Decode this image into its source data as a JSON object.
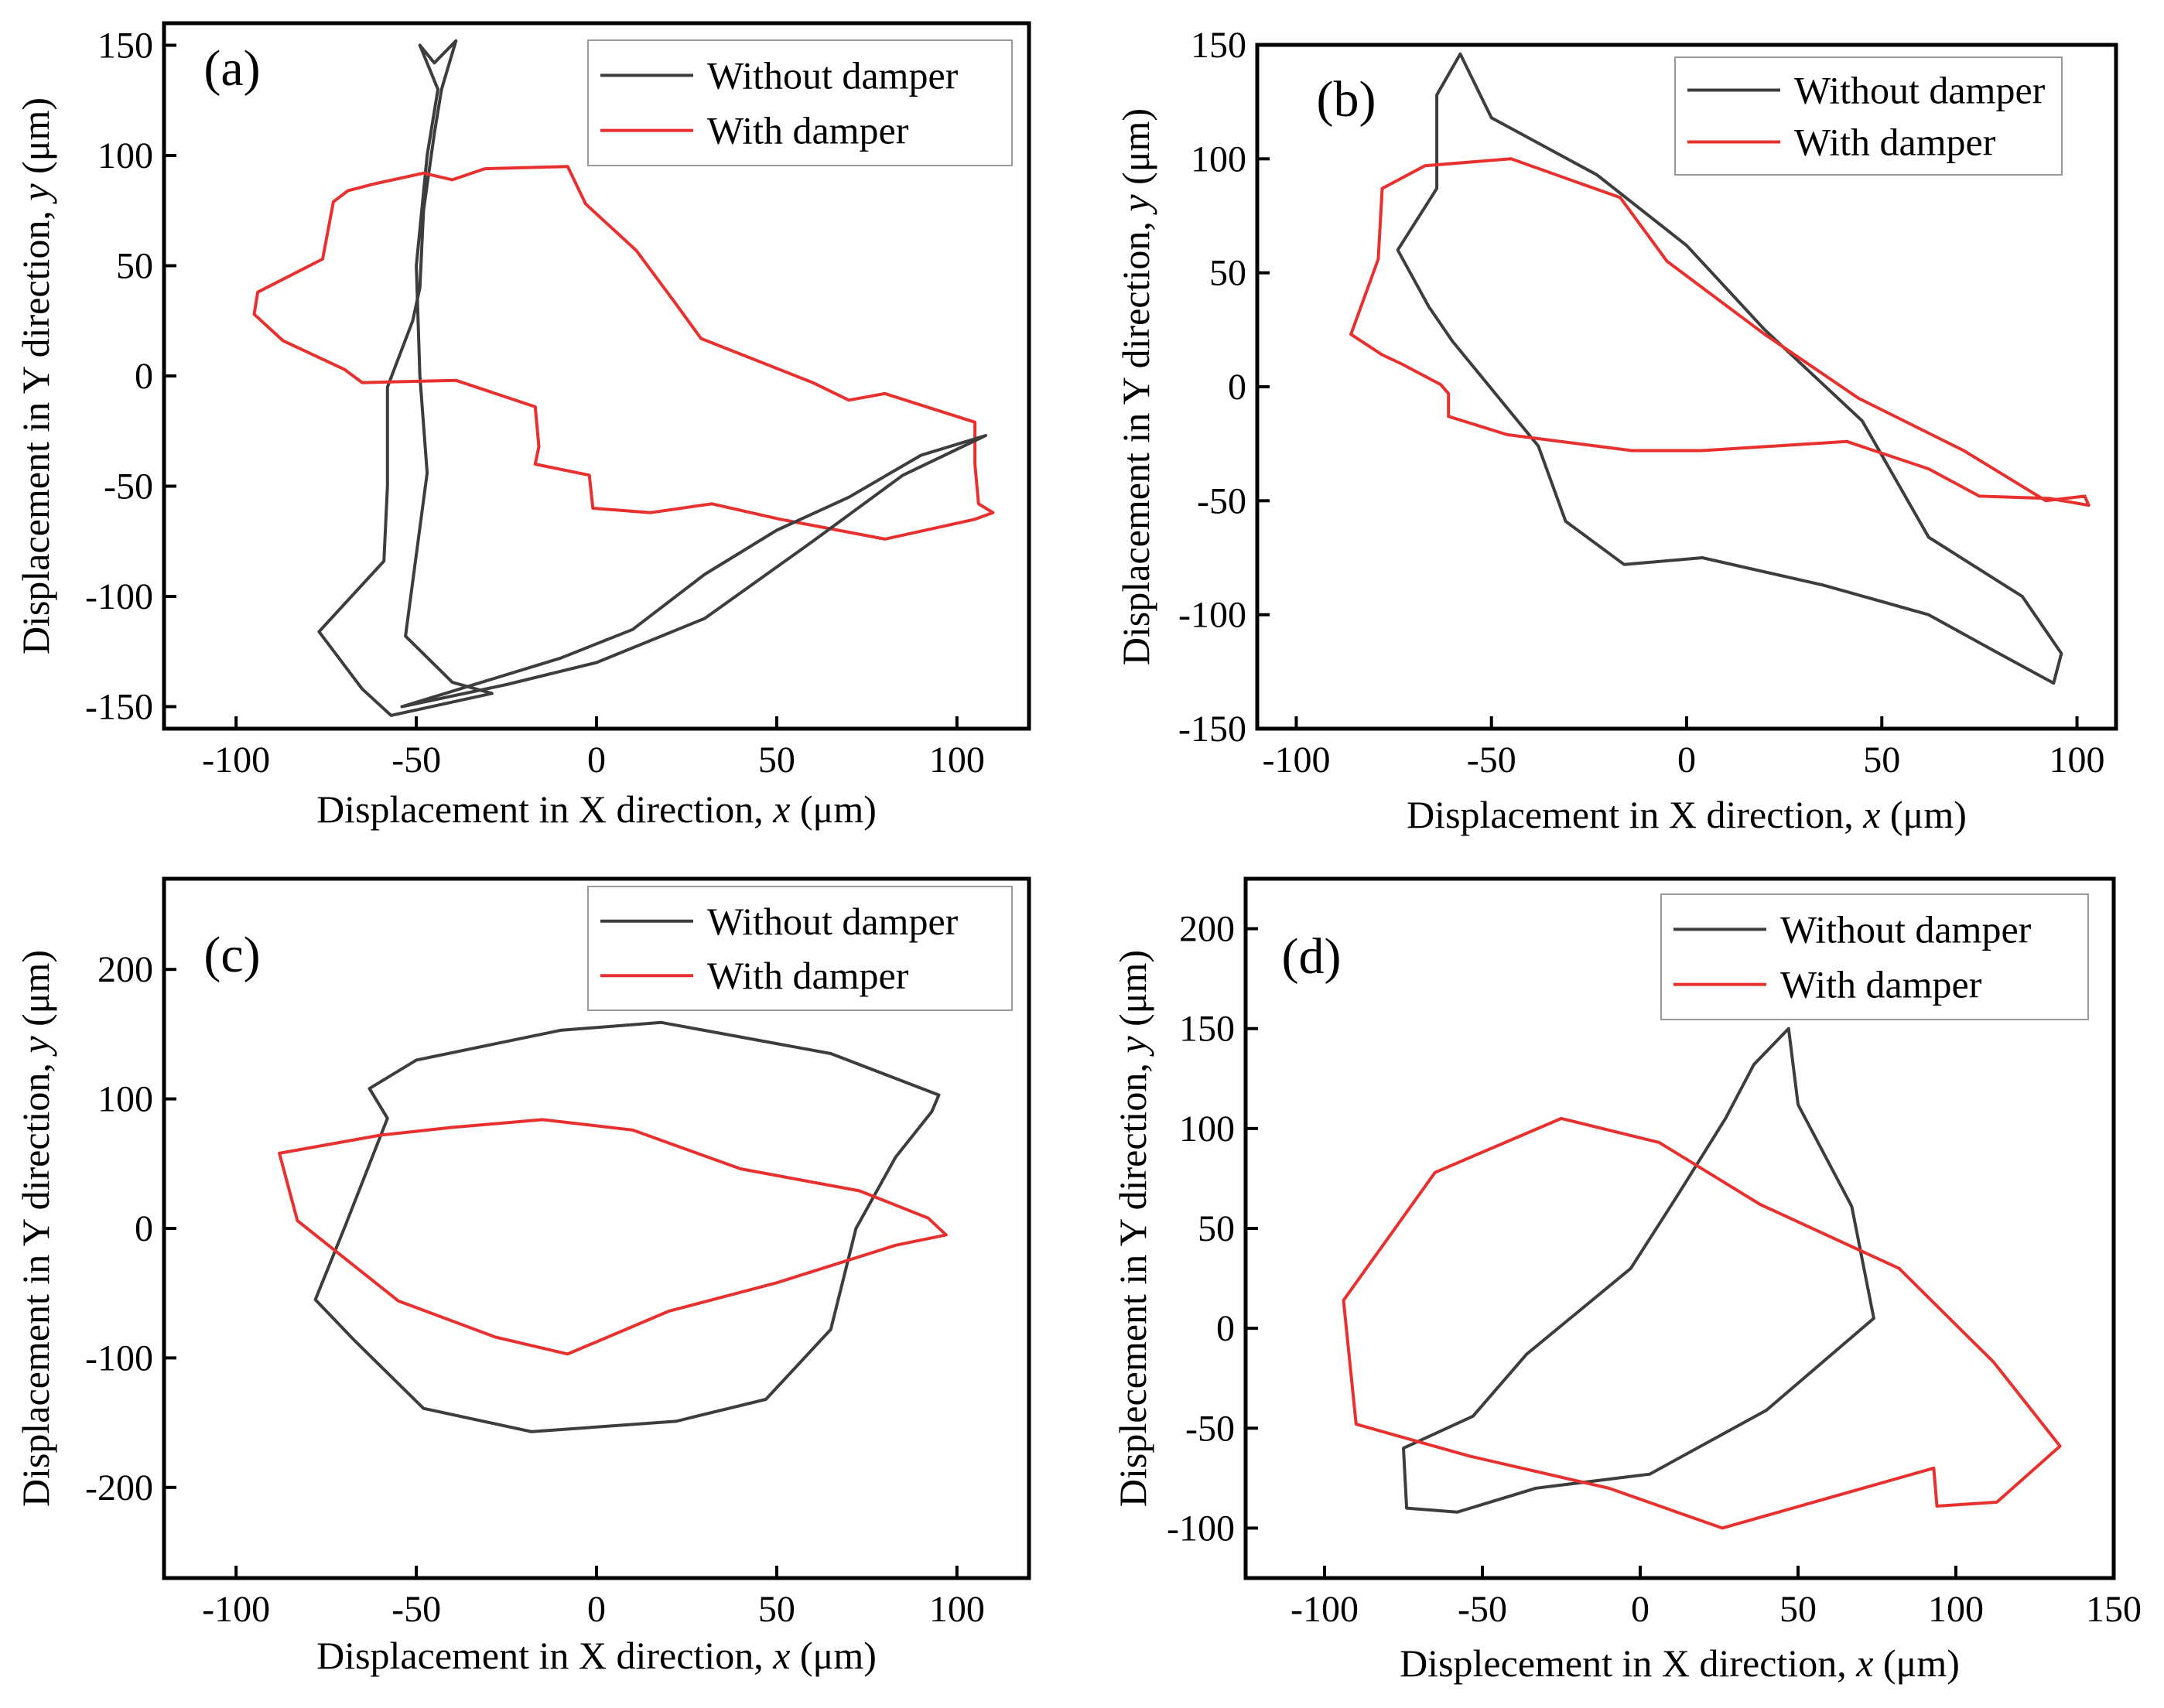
{
  "colors": {
    "without": "#3d3d3d",
    "with": "#e8312f",
    "frame": "#000000",
    "legend_border": "#9a9a9a"
  },
  "chart_data": [
    {
      "type": "line",
      "panel_label": "(a)",
      "xlabel_prefix": "Displacement in X direction, ",
      "xlabel_var": "x",
      "xlabel_unit": " (μm)",
      "ylabel_prefix": "Displacement in Y direction, ",
      "ylabel_var": "y",
      "ylabel_unit": " (μm)",
      "xlim": [
        -120,
        120
      ],
      "ylim": [
        -160,
        160
      ],
      "xticks": [
        -100,
        -50,
        0,
        50,
        100
      ],
      "yticks": [
        -150,
        -100,
        -50,
        0,
        50,
        100,
        150
      ],
      "legend": [
        "Without damper",
        "With damper"
      ],
      "series": [
        {
          "name": "Without damper",
          "points": [
            [
              -49,
              150
            ],
            [
              -45,
              142
            ],
            [
              -39,
              152
            ],
            [
              -43,
              130
            ],
            [
              -45,
              110
            ],
            [
              -48,
              75
            ],
            [
              -49,
              40
            ],
            [
              -51,
              25
            ],
            [
              -58,
              -5
            ],
            [
              -58,
              -50
            ],
            [
              -59,
              -84
            ],
            [
              -77,
              -116
            ],
            [
              -65,
              -142
            ],
            [
              -57,
              -154
            ],
            [
              -29,
              -144
            ],
            [
              -40,
              -139
            ],
            [
              -53,
              -118
            ],
            [
              -47,
              -44
            ],
            [
              -49,
              0
            ],
            [
              -50,
              50
            ],
            [
              -47,
              100
            ],
            [
              -44,
              130
            ],
            [
              -49,
              150
            ]
          ]
        },
        {
          "name": "With damper",
          "points": [
            [
              -95,
              28
            ],
            [
              -94,
              38
            ],
            [
              -76,
              53
            ],
            [
              -73,
              79
            ],
            [
              -69,
              84
            ],
            [
              -62,
              87
            ],
            [
              -48,
              92
            ],
            [
              -40,
              89
            ],
            [
              -31,
              94
            ],
            [
              -8,
              95
            ],
            [
              -3,
              78
            ],
            [
              11,
              57
            ],
            [
              21,
              35
            ],
            [
              29,
              17
            ],
            [
              60,
              -3
            ],
            [
              70,
              -11
            ],
            [
              80,
              -8
            ],
            [
              105,
              -21
            ],
            [
              105,
              -40
            ],
            [
              106,
              -58
            ],
            [
              110,
              -62
            ],
            [
              105,
              -65
            ],
            [
              80,
              -74
            ],
            [
              51,
              -65
            ],
            [
              32,
              -58
            ],
            [
              15,
              -62
            ],
            [
              -1,
              -60
            ],
            [
              -2,
              -45
            ],
            [
              -17,
              -40
            ],
            [
              -16,
              -32
            ],
            [
              -17,
              -14
            ],
            [
              -39,
              -2
            ],
            [
              -65,
              -3
            ],
            [
              -70,
              3
            ],
            [
              -87,
              16
            ],
            [
              -95,
              28
            ]
          ]
        },
        {
          "name": "Without damper",
          "points": [
            [
              -54,
              -150
            ],
            [
              -25,
              -140
            ],
            [
              0,
              -130
            ],
            [
              30,
              -110
            ],
            [
              60,
              -75
            ],
            [
              85,
              -45
            ],
            [
              108,
              -27
            ],
            [
              90,
              -36
            ],
            [
              70,
              -55
            ],
            [
              50,
              -70
            ],
            [
              30,
              -90
            ],
            [
              10,
              -115
            ],
            [
              -10,
              -128
            ],
            [
              -30,
              -138
            ],
            [
              -54,
              -150
            ]
          ]
        }
      ]
    },
    {
      "type": "line",
      "panel_label": "(b)",
      "xlabel_prefix": "Displacement in X direction, ",
      "xlabel_var": "x",
      "xlabel_unit": " (μm)",
      "ylabel_prefix": "Displacement in Y direction, ",
      "ylabel_var": "y",
      "ylabel_unit": " (μm)",
      "xlim": [
        -110,
        110
      ],
      "ylim": [
        -150,
        150
      ],
      "xticks": [
        -100,
        -50,
        0,
        50,
        100
      ],
      "yticks": [
        -150,
        -100,
        -50,
        0,
        50,
        100,
        150
      ],
      "legend": [
        "Without damper",
        "With damper"
      ],
      "series": [
        {
          "name": "Without damper",
          "points": [
            [
              -58,
              146
            ],
            [
              -50,
              118
            ],
            [
              -23,
              93
            ],
            [
              0,
              62
            ],
            [
              20,
              25
            ],
            [
              45,
              -15
            ],
            [
              62,
              -66
            ],
            [
              86,
              -92
            ],
            [
              96,
              -117
            ],
            [
              94,
              -130
            ],
            [
              80,
              -117
            ],
            [
              62,
              -100
            ],
            [
              35,
              -87
            ],
            [
              4,
              -75
            ],
            [
              -16,
              -78
            ],
            [
              -31,
              -59
            ],
            [
              -38,
              -26
            ],
            [
              -60,
              20
            ],
            [
              -66,
              35
            ],
            [
              -74,
              60
            ],
            [
              -64,
              87
            ],
            [
              -64,
              128
            ],
            [
              -58,
              146
            ]
          ]
        },
        {
          "name": "With damper",
          "points": [
            [
              -86,
              23
            ],
            [
              -78,
              14
            ],
            [
              -73,
              10
            ],
            [
              -63,
              1
            ],
            [
              -61,
              -3
            ],
            [
              -61,
              -13
            ],
            [
              -46,
              -21
            ],
            [
              -14,
              -28
            ],
            [
              4,
              -28
            ],
            [
              41,
              -24
            ],
            [
              62,
              -36
            ],
            [
              75,
              -48
            ],
            [
              93,
              -49
            ],
            [
              103,
              -52
            ],
            [
              102,
              -48
            ],
            [
              92,
              -50
            ],
            [
              71,
              -28
            ],
            [
              44,
              -5
            ],
            [
              20,
              23
            ],
            [
              -5,
              55
            ],
            [
              -17,
              83
            ],
            [
              -45,
              100
            ],
            [
              -67,
              97
            ],
            [
              -78,
              87
            ],
            [
              -79,
              56
            ],
            [
              -86,
              23
            ]
          ]
        }
      ]
    },
    {
      "type": "line",
      "panel_label": "(c)",
      "xlabel_prefix": "Displacement in X direction, ",
      "xlabel_var": "x",
      "xlabel_unit": " (μm)",
      "ylabel_prefix": "Displacement in Y direction, ",
      "ylabel_var": "y",
      "ylabel_unit": " (μm)",
      "xlim": [
        -120,
        120
      ],
      "ylim": [
        -270,
        270
      ],
      "xticks": [
        -100,
        -50,
        0,
        50,
        100
      ],
      "yticks": [
        -200,
        -100,
        0,
        100,
        200
      ],
      "legend": [
        "Without damper",
        "With damper"
      ],
      "series": [
        {
          "name": "Without damper",
          "points": [
            [
              -63,
              108
            ],
            [
              -50,
              130
            ],
            [
              -10,
              153
            ],
            [
              18,
              159
            ],
            [
              65,
              135
            ],
            [
              95,
              103
            ],
            [
              93,
              90
            ],
            [
              83,
              55
            ],
            [
              72,
              0
            ],
            [
              65,
              -78
            ],
            [
              47,
              -132
            ],
            [
              22,
              -149
            ],
            [
              -18,
              -157
            ],
            [
              -48,
              -139
            ],
            [
              -67,
              -87
            ],
            [
              -78,
              -55
            ],
            [
              -70,
              0
            ],
            [
              -58,
              85
            ],
            [
              -63,
              108
            ]
          ]
        },
        {
          "name": "With damper",
          "points": [
            [
              -88,
              58
            ],
            [
              -60,
              72
            ],
            [
              -40,
              78
            ],
            [
              -15,
              84
            ],
            [
              10,
              76
            ],
            [
              40,
              46
            ],
            [
              73,
              29
            ],
            [
              92,
              8
            ],
            [
              97,
              -5
            ],
            [
              83,
              -13
            ],
            [
              50,
              -42
            ],
            [
              20,
              -64
            ],
            [
              -8,
              -97
            ],
            [
              -28,
              -84
            ],
            [
              -55,
              -56
            ],
            [
              -83,
              6
            ],
            [
              -88,
              58
            ]
          ]
        }
      ]
    },
    {
      "type": "line",
      "panel_label": "(d)",
      "xlabel_prefix": "Displecement in X direction, ",
      "xlabel_var": "x",
      "xlabel_unit": " (μm)",
      "ylabel_prefix": "Displecement in Y direction, ",
      "ylabel_var": "y",
      "ylabel_unit": " (μm)",
      "xlim": [
        -125,
        150
      ],
      "ylim": [
        -125,
        225
      ],
      "xticks": [
        -100,
        -50,
        0,
        50,
        100,
        150
      ],
      "yticks": [
        -100,
        -50,
        0,
        50,
        100,
        150,
        200
      ],
      "legend": [
        "Without damper",
        "With damper"
      ],
      "series": [
        {
          "name": "Without damper",
          "points": [
            [
              47,
              150
            ],
            [
              50,
              112
            ],
            [
              67,
              61
            ],
            [
              74,
              5
            ],
            [
              40,
              -41
            ],
            [
              3,
              -73
            ],
            [
              -33,
              -80
            ],
            [
              -58,
              -92
            ],
            [
              -74,
              -90
            ],
            [
              -75,
              -60
            ],
            [
              -53,
              -44
            ],
            [
              -36,
              -13
            ],
            [
              -3,
              30
            ],
            [
              12,
              67
            ],
            [
              27,
              105
            ],
            [
              36,
              132
            ],
            [
              47,
              150
            ]
          ]
        },
        {
          "name": "With damper",
          "points": [
            [
              -65,
              78
            ],
            [
              -25,
              105
            ],
            [
              6,
              93
            ],
            [
              38,
              62
            ],
            [
              82,
              30
            ],
            [
              112,
              -17
            ],
            [
              133,
              -59
            ],
            [
              113,
              -87
            ],
            [
              94,
              -89
            ],
            [
              93,
              -70
            ],
            [
              26,
              -100
            ],
            [
              -10,
              -80
            ],
            [
              -54,
              -64
            ],
            [
              -90,
              -48
            ],
            [
              -94,
              14
            ],
            [
              -65,
              78
            ]
          ]
        }
      ]
    }
  ]
}
